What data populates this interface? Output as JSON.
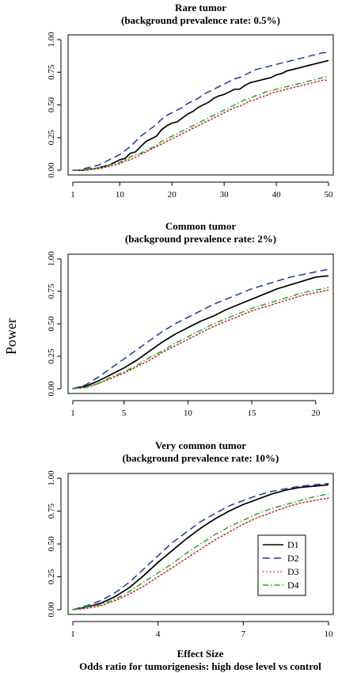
{
  "figure": {
    "ylabel": "Power",
    "xlabel_line1": "Effect Size",
    "xlabel_line2": "Odds ratio for tumorigenesis: high dose level vs control"
  },
  "legend": {
    "placement": "inside bottom panel, right",
    "entries": [
      "D1",
      "D2",
      "D3",
      "D4"
    ]
  },
  "styles": {
    "D1": {
      "color": "#000000",
      "dash": "solid"
    },
    "D2": {
      "color": "#1a3a9c",
      "dash": "long-dash"
    },
    "D3": {
      "color": "#cc2222",
      "dash": "dotted"
    },
    "D4": {
      "color": "#22aa22",
      "dash": "dash-dot"
    }
  },
  "chart_data": [
    {
      "type": "line",
      "title": [
        "Rare tumor",
        "(background prevalence rate: 0.5%)"
      ],
      "xlim": [
        1,
        50
      ],
      "ylim": [
        0,
        1
      ],
      "xticks": [
        1,
        10,
        20,
        30,
        40,
        50
      ],
      "yticks": [
        "0.00",
        "0.25",
        "0.50",
        "0.75",
        "1.00"
      ],
      "grid": false,
      "series": [
        {
          "name": "D1",
          "x": [
            1,
            2,
            3,
            4,
            5,
            6,
            7,
            8,
            9,
            10,
            11,
            12,
            13,
            14,
            15,
            16,
            17,
            18,
            19,
            20,
            21,
            22,
            23,
            24,
            25,
            26,
            27,
            28,
            29,
            30,
            31,
            32,
            33,
            34,
            35,
            36,
            37,
            38,
            39,
            40,
            41,
            42,
            43,
            44,
            45,
            46,
            47,
            48,
            49,
            50
          ],
          "y": [
            0.0,
            0.0,
            0.0,
            0.01,
            0.01,
            0.02,
            0.03,
            0.04,
            0.06,
            0.08,
            0.09,
            0.13,
            0.14,
            0.18,
            0.22,
            0.24,
            0.26,
            0.31,
            0.34,
            0.36,
            0.37,
            0.4,
            0.43,
            0.45,
            0.48,
            0.5,
            0.52,
            0.55,
            0.57,
            0.58,
            0.6,
            0.62,
            0.62,
            0.65,
            0.67,
            0.68,
            0.69,
            0.7,
            0.71,
            0.73,
            0.74,
            0.76,
            0.77,
            0.78,
            0.79,
            0.8,
            0.81,
            0.82,
            0.83,
            0.84
          ]
        },
        {
          "name": "D2",
          "x": [
            1,
            2,
            3,
            4,
            5,
            6,
            7,
            8,
            9,
            10,
            11,
            12,
            13,
            14,
            15,
            16,
            17,
            18,
            19,
            20,
            21,
            22,
            23,
            24,
            25,
            26,
            27,
            28,
            29,
            30,
            31,
            32,
            33,
            34,
            35,
            36,
            37,
            38,
            39,
            40,
            41,
            42,
            43,
            44,
            45,
            46,
            47,
            48,
            49,
            50
          ],
          "y": [
            0.0,
            0.0,
            0.01,
            0.02,
            0.03,
            0.04,
            0.06,
            0.08,
            0.1,
            0.12,
            0.15,
            0.18,
            0.22,
            0.26,
            0.29,
            0.32,
            0.35,
            0.39,
            0.42,
            0.44,
            0.46,
            0.48,
            0.51,
            0.53,
            0.55,
            0.58,
            0.6,
            0.62,
            0.64,
            0.66,
            0.68,
            0.7,
            0.71,
            0.73,
            0.75,
            0.77,
            0.78,
            0.79,
            0.8,
            0.81,
            0.82,
            0.83,
            0.84,
            0.85,
            0.86,
            0.87,
            0.88,
            0.89,
            0.9,
            0.9
          ]
        },
        {
          "name": "D3",
          "x": [
            1,
            2,
            3,
            4,
            5,
            6,
            7,
            8,
            9,
            10,
            11,
            12,
            13,
            14,
            15,
            16,
            17,
            18,
            19,
            20,
            21,
            22,
            23,
            24,
            25,
            26,
            27,
            28,
            29,
            30,
            31,
            32,
            33,
            34,
            35,
            36,
            37,
            38,
            39,
            40,
            41,
            42,
            43,
            44,
            45,
            46,
            47,
            48,
            49,
            50
          ],
          "y": [
            0.0,
            0.0,
            0.0,
            0.0,
            0.01,
            0.01,
            0.02,
            0.03,
            0.04,
            0.05,
            0.07,
            0.08,
            0.1,
            0.12,
            0.14,
            0.16,
            0.18,
            0.2,
            0.22,
            0.24,
            0.26,
            0.28,
            0.3,
            0.32,
            0.34,
            0.36,
            0.38,
            0.4,
            0.42,
            0.44,
            0.46,
            0.48,
            0.49,
            0.51,
            0.53,
            0.54,
            0.56,
            0.57,
            0.59,
            0.6,
            0.61,
            0.62,
            0.63,
            0.64,
            0.65,
            0.66,
            0.67,
            0.68,
            0.69,
            0.69
          ]
        },
        {
          "name": "D4",
          "x": [
            1,
            2,
            3,
            4,
            5,
            6,
            7,
            8,
            9,
            10,
            11,
            12,
            13,
            14,
            15,
            16,
            17,
            18,
            19,
            20,
            21,
            22,
            23,
            24,
            25,
            26,
            27,
            28,
            29,
            30,
            31,
            32,
            33,
            34,
            35,
            36,
            37,
            38,
            39,
            40,
            41,
            42,
            43,
            44,
            45,
            46,
            47,
            48,
            49,
            50
          ],
          "y": [
            0.0,
            0.0,
            0.0,
            0.01,
            0.01,
            0.02,
            0.03,
            0.04,
            0.05,
            0.06,
            0.08,
            0.1,
            0.12,
            0.13,
            0.15,
            0.17,
            0.19,
            0.22,
            0.24,
            0.26,
            0.28,
            0.3,
            0.32,
            0.34,
            0.36,
            0.38,
            0.4,
            0.42,
            0.44,
            0.46,
            0.48,
            0.5,
            0.52,
            0.54,
            0.55,
            0.57,
            0.58,
            0.6,
            0.61,
            0.62,
            0.63,
            0.64,
            0.65,
            0.66,
            0.67,
            0.68,
            0.69,
            0.7,
            0.71,
            0.72
          ]
        }
      ]
    },
    {
      "type": "line",
      "title": [
        "Common tumor",
        "(background prevalence rate: 2%)"
      ],
      "xlim": [
        1,
        21
      ],
      "ylim": [
        0,
        1
      ],
      "xticks": [
        1,
        5,
        10,
        15,
        20
      ],
      "yticks": [
        "0.00",
        "0.25",
        "0.50",
        "0.75",
        "1.00"
      ],
      "grid": false,
      "series": [
        {
          "name": "D1",
          "x": [
            1,
            2,
            3,
            4,
            5,
            6,
            7,
            8,
            9,
            10,
            11,
            12,
            13,
            14,
            15,
            16,
            17,
            18,
            19,
            20,
            21
          ],
          "y": [
            0.0,
            0.02,
            0.06,
            0.11,
            0.16,
            0.22,
            0.29,
            0.36,
            0.42,
            0.47,
            0.52,
            0.56,
            0.61,
            0.65,
            0.69,
            0.73,
            0.77,
            0.8,
            0.83,
            0.86,
            0.87
          ]
        },
        {
          "name": "D2",
          "x": [
            1,
            2,
            3,
            4,
            5,
            6,
            7,
            8,
            9,
            10,
            11,
            12,
            13,
            14,
            15,
            16,
            17,
            18,
            19,
            20,
            21
          ],
          "y": [
            0.0,
            0.03,
            0.09,
            0.16,
            0.23,
            0.3,
            0.37,
            0.44,
            0.5,
            0.55,
            0.6,
            0.65,
            0.69,
            0.73,
            0.77,
            0.8,
            0.83,
            0.86,
            0.88,
            0.9,
            0.92
          ]
        },
        {
          "name": "D3",
          "x": [
            1,
            2,
            3,
            4,
            5,
            6,
            7,
            8,
            9,
            10,
            11,
            12,
            13,
            14,
            15,
            16,
            17,
            18,
            19,
            20,
            21
          ],
          "y": [
            0.0,
            0.01,
            0.04,
            0.08,
            0.12,
            0.17,
            0.22,
            0.28,
            0.33,
            0.38,
            0.43,
            0.48,
            0.52,
            0.56,
            0.6,
            0.63,
            0.66,
            0.69,
            0.72,
            0.74,
            0.76
          ]
        },
        {
          "name": "D4",
          "x": [
            1,
            2,
            3,
            4,
            5,
            6,
            7,
            8,
            9,
            10,
            11,
            12,
            13,
            14,
            15,
            16,
            17,
            18,
            19,
            20,
            21
          ],
          "y": [
            0.0,
            0.01,
            0.04,
            0.09,
            0.13,
            0.18,
            0.24,
            0.29,
            0.35,
            0.4,
            0.45,
            0.5,
            0.54,
            0.58,
            0.62,
            0.65,
            0.68,
            0.71,
            0.74,
            0.76,
            0.78
          ]
        }
      ]
    },
    {
      "type": "line",
      "title": [
        "Very common tumor",
        "(background prevalence rate: 10%)"
      ],
      "xlim": [
        1,
        10
      ],
      "ylim": [
        0,
        1
      ],
      "xticks": [
        1,
        4,
        7,
        10
      ],
      "yticks": [
        "0.00",
        "0.25",
        "0.50",
        "0.75",
        "1.00"
      ],
      "grid": false,
      "series": [
        {
          "name": "D1",
          "x": [
            1,
            1.5,
            2,
            2.5,
            3,
            3.5,
            4,
            4.5,
            5,
            5.5,
            6,
            6.5,
            7,
            7.5,
            8,
            8.5,
            9,
            9.5,
            10
          ],
          "y": [
            0.0,
            0.02,
            0.05,
            0.1,
            0.17,
            0.26,
            0.36,
            0.45,
            0.54,
            0.62,
            0.69,
            0.75,
            0.8,
            0.84,
            0.88,
            0.91,
            0.93,
            0.94,
            0.95
          ]
        },
        {
          "name": "D2",
          "x": [
            1,
            1.5,
            2,
            2.5,
            3,
            3.5,
            4,
            4.5,
            5,
            5.5,
            6,
            6.5,
            7,
            7.5,
            8,
            8.5,
            9,
            9.5,
            10
          ],
          "y": [
            0.0,
            0.03,
            0.07,
            0.13,
            0.21,
            0.31,
            0.41,
            0.51,
            0.59,
            0.67,
            0.73,
            0.79,
            0.83,
            0.87,
            0.9,
            0.92,
            0.94,
            0.95,
            0.96
          ]
        },
        {
          "name": "D3",
          "x": [
            1,
            1.5,
            2,
            2.5,
            3,
            3.5,
            4,
            4.5,
            5,
            5.5,
            6,
            6.5,
            7,
            7.5,
            8,
            8.5,
            9,
            9.5,
            10
          ],
          "y": [
            0.0,
            0.01,
            0.03,
            0.07,
            0.12,
            0.18,
            0.25,
            0.32,
            0.39,
            0.46,
            0.53,
            0.59,
            0.65,
            0.7,
            0.74,
            0.78,
            0.81,
            0.83,
            0.85
          ]
        },
        {
          "name": "D4",
          "x": [
            1,
            1.5,
            2,
            2.5,
            3,
            3.5,
            4,
            4.5,
            5,
            5.5,
            6,
            6.5,
            7,
            7.5,
            8,
            8.5,
            9,
            9.5,
            10
          ],
          "y": [
            0.0,
            0.02,
            0.04,
            0.08,
            0.14,
            0.21,
            0.28,
            0.35,
            0.43,
            0.5,
            0.57,
            0.63,
            0.68,
            0.73,
            0.77,
            0.8,
            0.83,
            0.86,
            0.88
          ]
        }
      ]
    }
  ]
}
